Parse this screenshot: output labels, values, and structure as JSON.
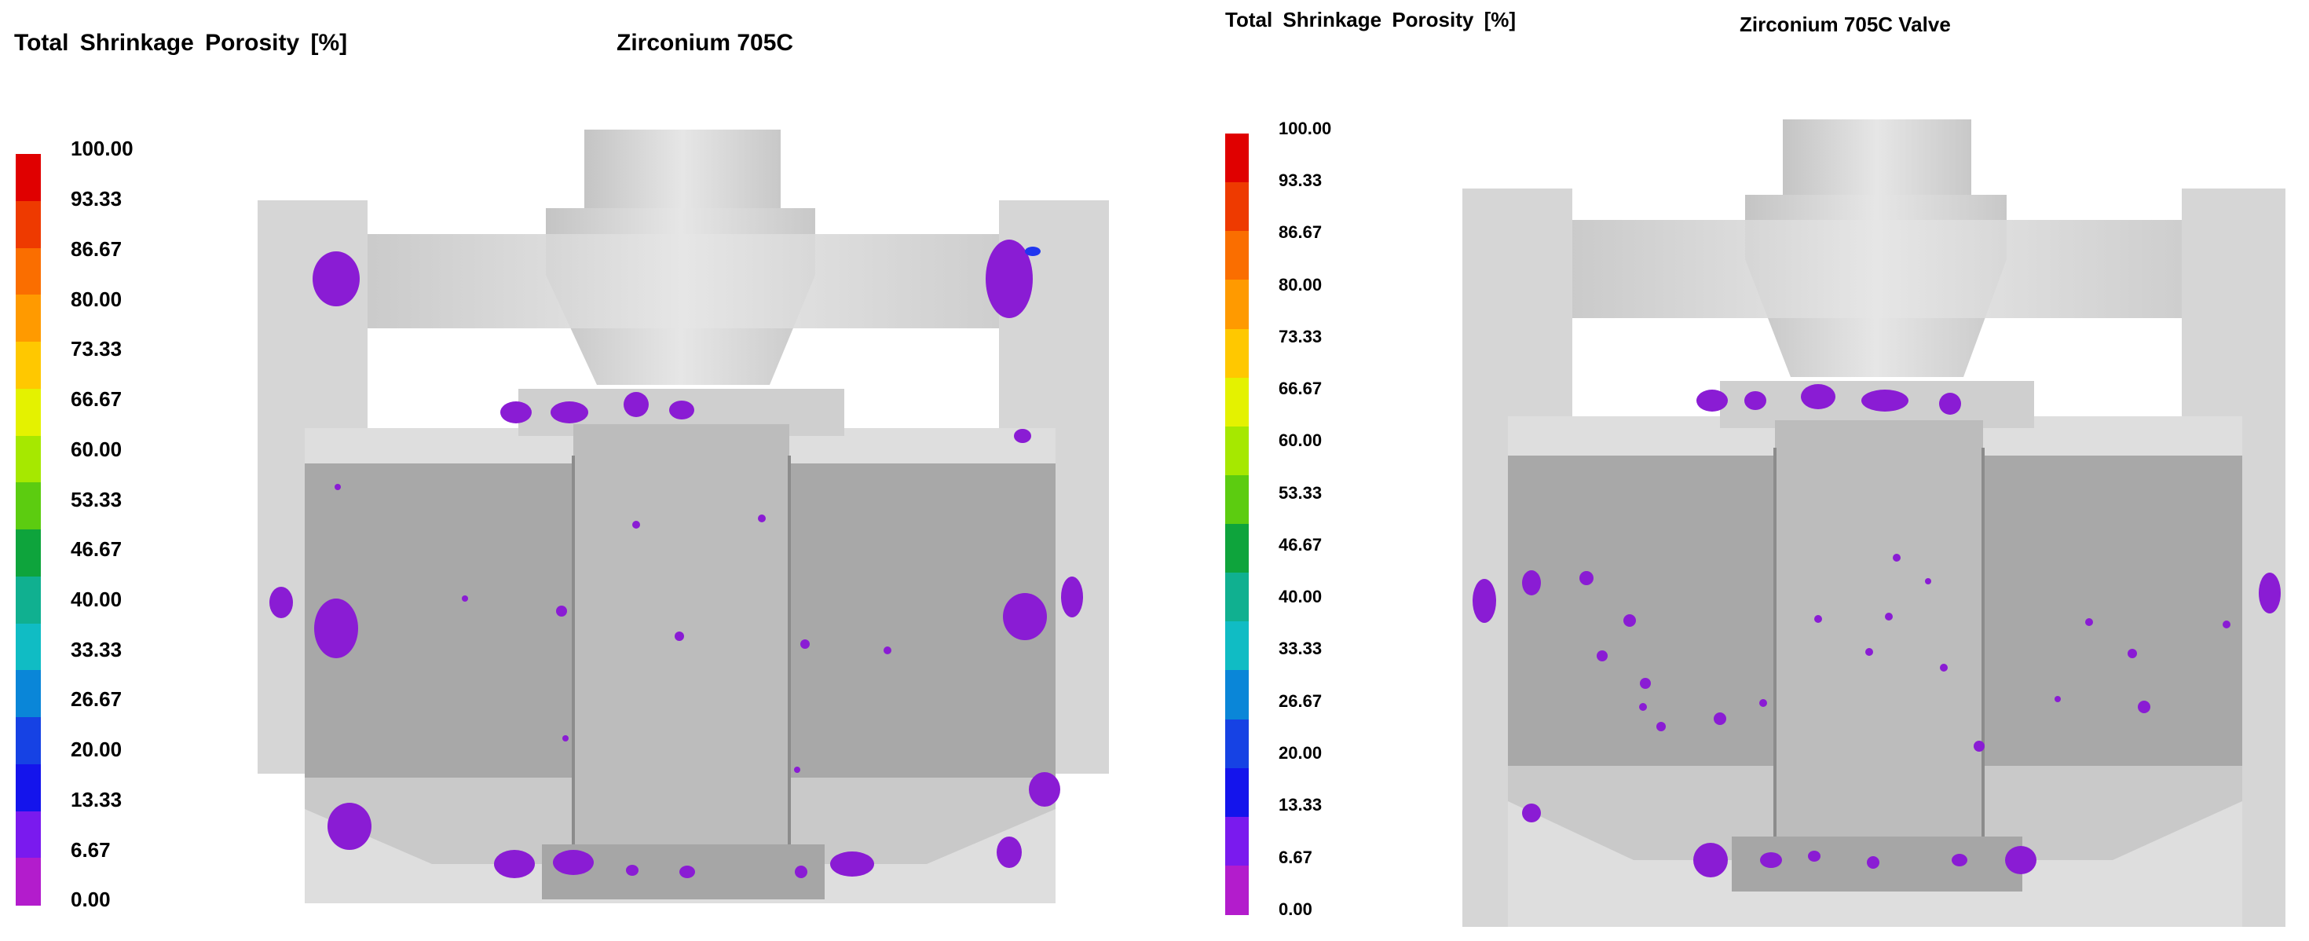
{
  "left_panel": {
    "legend_title": "Total Shrinkage Porosity [%]",
    "title": "Zirconium 705C"
  },
  "right_panel": {
    "legend_title": "Total Shrinkage Porosity [%]",
    "title": "Zirconium 705C Valve"
  },
  "scale": {
    "labels": [
      "100.00",
      "93.33",
      "86.67",
      "80.00",
      "73.33",
      "66.67",
      "60.00",
      "53.33",
      "46.67",
      "40.00",
      "33.33",
      "26.67",
      "20.00",
      "13.33",
      "6.67",
      "0.00"
    ],
    "colors": [
      "#e00000",
      "#ee3a00",
      "#fa6e00",
      "#ff9a00",
      "#ffc800",
      "#e4f200",
      "#a6e800",
      "#5ccc10",
      "#0ea43c",
      "#10b090",
      "#10bcc4",
      "#0a86d8",
      "#1642e4",
      "#1414ec",
      "#7a1aee",
      "#b31ccc"
    ]
  },
  "colors": {
    "casting_light": "#dcdcdc",
    "casting_mid": "#c6c6c6",
    "casting_dark": "#a9a9a9",
    "porosity": "#8a1cd4"
  }
}
